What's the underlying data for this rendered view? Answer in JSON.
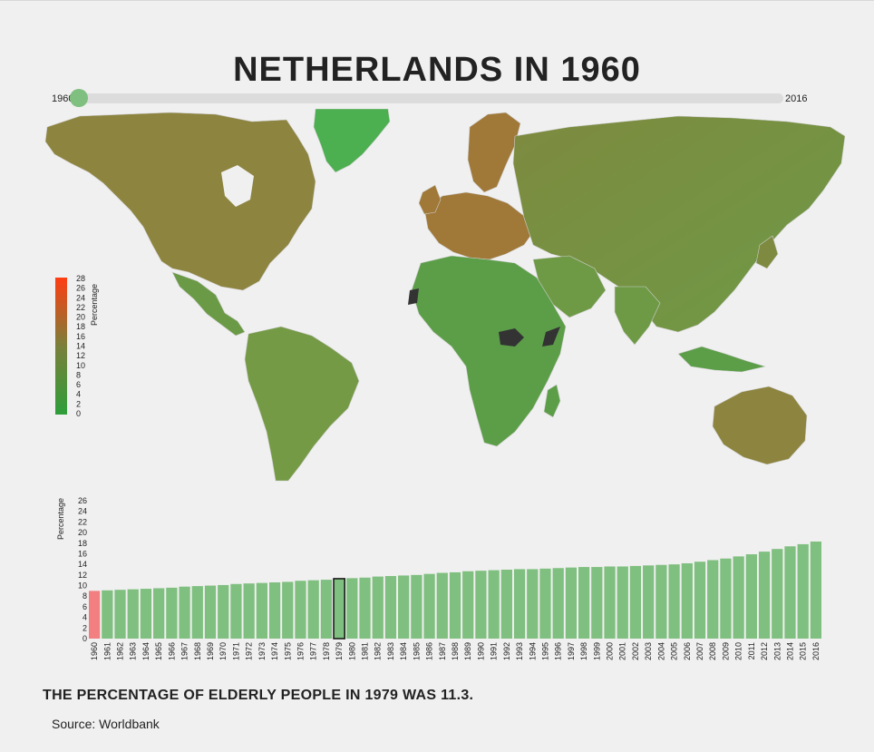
{
  "header": {
    "title": "NETHERLANDS IN 1960"
  },
  "slider": {
    "min_label": "1960",
    "max_label": "2016",
    "min": 1960,
    "max": 2016,
    "value": 1960
  },
  "map": {
    "legend": {
      "label": "Percentage",
      "ticks": [
        "28",
        "26",
        "24",
        "22",
        "20",
        "18",
        "16",
        "14",
        "12",
        "10",
        "8",
        "6",
        "4",
        "2",
        "0"
      ],
      "min": 0,
      "max": 28,
      "color_low": "#2e9e3a",
      "color_mid": "#7a7f3a",
      "color_high": "#ff3d12"
    },
    "colors": {
      "ocean": "#f0f0f0",
      "no_data": "#333333",
      "greenland": "#4caf50",
      "europe_brown": "#a07838",
      "north_america": "#8d843f",
      "africa": "#5c9e48"
    }
  },
  "chart_data": {
    "type": "bar",
    "ylabel": "Percentage",
    "y_ticks": [
      "26",
      "24",
      "22",
      "20",
      "18",
      "16",
      "14",
      "12",
      "10",
      "8",
      "6",
      "4",
      "2",
      "0"
    ],
    "ylim": [
      0,
      26
    ],
    "categories": [
      "1960",
      "1961",
      "1962",
      "1963",
      "1964",
      "1965",
      "1966",
      "1967",
      "1968",
      "1969",
      "1970",
      "1971",
      "1972",
      "1973",
      "1974",
      "1975",
      "1976",
      "1977",
      "1978",
      "1979",
      "1980",
      "1981",
      "1982",
      "1983",
      "1984",
      "1985",
      "1986",
      "1987",
      "1988",
      "1989",
      "1990",
      "1991",
      "1992",
      "1993",
      "1994",
      "1995",
      "1996",
      "1997",
      "1998",
      "1999",
      "2000",
      "2001",
      "2002",
      "2003",
      "2004",
      "2005",
      "2006",
      "2007",
      "2008",
      "2009",
      "2010",
      "2011",
      "2012",
      "2013",
      "2014",
      "2015",
      "2016"
    ],
    "values": [
      9.0,
      9.1,
      9.2,
      9.3,
      9.4,
      9.5,
      9.6,
      9.8,
      9.9,
      10.0,
      10.1,
      10.3,
      10.4,
      10.5,
      10.6,
      10.7,
      10.9,
      11.0,
      11.1,
      11.3,
      11.4,
      11.5,
      11.7,
      11.8,
      11.9,
      12.0,
      12.2,
      12.4,
      12.5,
      12.7,
      12.8,
      12.9,
      13.0,
      13.1,
      13.1,
      13.2,
      13.3,
      13.4,
      13.5,
      13.5,
      13.6,
      13.6,
      13.7,
      13.8,
      13.9,
      14.0,
      14.2,
      14.5,
      14.8,
      15.1,
      15.5,
      15.9,
      16.4,
      16.9,
      17.4,
      17.8,
      18.3
    ],
    "highlight_selected": "1960",
    "highlight_hover": "1979",
    "bar_color": "#7fbf7f",
    "selected_color": "#f28080"
  },
  "caption": "THE PERCENTAGE OF ELDERLY PEOPLE IN 1979 WAS 11.3.",
  "source": "Source: Worldbank"
}
